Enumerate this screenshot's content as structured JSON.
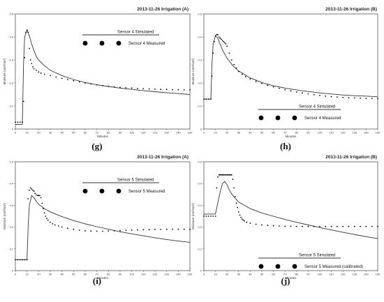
{
  "chart_data": [
    {
      "type": "scatter",
      "title": "2013-11-26 Irrigation (A)",
      "panel_label": "(g)",
      "xlabel": "Minutes",
      "ylabel": "Moisture (cm³/cm³)",
      "xlim": [
        0,
        150
      ],
      "ylim": [
        0,
        0.5
      ],
      "xticks": [
        "0",
        "10",
        "20",
        "30",
        "40",
        "50",
        "60",
        "70",
        "80",
        "90",
        "100",
        "110",
        "120",
        "130",
        "140",
        "150"
      ],
      "yticks": [
        "0",
        "0.1",
        "0.2",
        "0.3",
        "0.4",
        "0.5"
      ],
      "legend_position": "top-right",
      "series": [
        {
          "name": "Sensor 4 Simulated",
          "style": "line",
          "x": [
            0,
            6,
            7,
            8,
            10,
            12,
            14,
            16,
            18,
            20,
            25,
            30,
            40,
            50,
            60,
            70,
            80,
            90,
            100,
            110,
            120,
            130,
            140,
            150
          ],
          "y": [
            0.02,
            0.02,
            0.28,
            0.4,
            0.43,
            0.405,
            0.37,
            0.34,
            0.315,
            0.3,
            0.275,
            0.255,
            0.232,
            0.215,
            0.202,
            0.192,
            0.185,
            0.178,
            0.172,
            0.167,
            0.162,
            0.158,
            0.154,
            0.15
          ]
        },
        {
          "name": "Sensor 4 Measured",
          "style": "markers",
          "x": [
            0,
            2,
            4,
            6,
            7,
            8,
            9,
            10,
            11,
            12,
            13,
            14,
            15,
            16,
            18,
            20,
            22,
            25,
            30,
            35,
            40,
            45,
            50,
            55,
            60,
            65,
            70,
            75,
            80,
            85,
            90,
            95,
            100,
            105,
            110,
            115,
            120,
            125,
            130,
            135,
            140,
            145,
            150
          ],
          "y": [
            0.03,
            0.03,
            0.03,
            0.03,
            0.12,
            0.31,
            0.42,
            0.43,
            0.42,
            0.35,
            0.3,
            0.285,
            0.27,
            0.262,
            0.255,
            0.248,
            0.243,
            0.238,
            0.232,
            0.226,
            0.22,
            0.215,
            0.21,
            0.205,
            0.2,
            0.196,
            0.192,
            0.189,
            0.186,
            0.183,
            0.181,
            0.179,
            0.178,
            0.176,
            0.175,
            0.174,
            0.173,
            0.172,
            0.172,
            0.171,
            0.171,
            0.17,
            0.17
          ]
        }
      ]
    },
    {
      "type": "scatter",
      "title": "2013-11-26 Irrigation (B)",
      "panel_label": "(h)",
      "xlabel": "Minutes",
      "ylabel": "Moisture (cm³/cm³)",
      "xlim": [
        0,
        150
      ],
      "ylim": [
        0,
        0.5
      ],
      "xticks": [
        "0",
        "10",
        "20",
        "30",
        "40",
        "50",
        "60",
        "70",
        "80",
        "90",
        "100",
        "110",
        "120",
        "130",
        "140",
        "150"
      ],
      "yticks": [
        "0",
        "0.1",
        "0.2",
        "0.3",
        "0.4",
        "0.5"
      ],
      "legend_position": "bottom-right",
      "series": [
        {
          "name": "Sensor 4 Simulated",
          "style": "line",
          "x": [
            0,
            6,
            7,
            8,
            10,
            12,
            14,
            16,
            18,
            20,
            25,
            30,
            40,
            50,
            60,
            70,
            80,
            90,
            100,
            110,
            120,
            130,
            140,
            150
          ],
          "y": [
            0.13,
            0.13,
            0.28,
            0.37,
            0.405,
            0.395,
            0.37,
            0.345,
            0.325,
            0.308,
            0.275,
            0.252,
            0.222,
            0.202,
            0.188,
            0.178,
            0.17,
            0.163,
            0.157,
            0.152,
            0.148,
            0.145,
            0.143,
            0.14
          ]
        },
        {
          "name": "Sensor 4 Measured",
          "style": "markers",
          "x": [
            0,
            2,
            4,
            6,
            7,
            8,
            9,
            10,
            11,
            12,
            13,
            14,
            15,
            16,
            17,
            18,
            19,
            20,
            22,
            24,
            26,
            28,
            30,
            33,
            36,
            40,
            45,
            50,
            55,
            60,
            65,
            70,
            75,
            80,
            85,
            90,
            95,
            100,
            105,
            110,
            115,
            120,
            125,
            130,
            135,
            140,
            145,
            150
          ],
          "y": [
            0.13,
            0.13,
            0.13,
            0.13,
            0.23,
            0.33,
            0.38,
            0.405,
            0.41,
            0.41,
            0.4,
            0.395,
            0.39,
            0.385,
            0.38,
            0.375,
            0.37,
            0.36,
            0.33,
            0.3,
            0.28,
            0.265,
            0.25,
            0.238,
            0.228,
            0.218,
            0.207,
            0.198,
            0.19,
            0.183,
            0.177,
            0.171,
            0.166,
            0.161,
            0.157,
            0.153,
            0.149,
            0.146,
            0.143,
            0.141,
            0.139,
            0.137,
            0.136,
            0.135,
            0.134,
            0.133,
            0.133,
            0.132
          ]
        }
      ]
    },
    {
      "type": "scatter",
      "title": "2013-11-26 Irrigation (A)",
      "panel_label": "(i)",
      "xlabel": "Minutes",
      "ylabel": "Moisture (cm³/cm³)",
      "xlim": [
        0,
        150
      ],
      "ylim": [
        0,
        0.5
      ],
      "xticks": [
        "0",
        "10",
        "20",
        "30",
        "40",
        "50",
        "60",
        "70",
        "80",
        "90",
        "100",
        "110",
        "120",
        "130",
        "140",
        "150"
      ],
      "yticks": [
        "0",
        "0.1",
        "0.2",
        "0.3",
        "0.4",
        "0.5"
      ],
      "legend_position": "top-right",
      "series": [
        {
          "name": "Sensor 5 Simulated",
          "style": "line",
          "x": [
            0,
            10,
            11,
            12,
            14,
            16,
            18,
            20,
            25,
            30,
            40,
            50,
            60,
            70,
            80,
            90,
            100,
            110,
            120,
            130,
            140,
            150
          ],
          "y": [
            0.05,
            0.05,
            0.2,
            0.3,
            0.345,
            0.335,
            0.318,
            0.305,
            0.285,
            0.27,
            0.248,
            0.23,
            0.215,
            0.202,
            0.19,
            0.179,
            0.169,
            0.16,
            0.151,
            0.143,
            0.136,
            0.13
          ]
        },
        {
          "name": "Sensor 5 Measured",
          "style": "markers",
          "x": [
            0,
            2,
            4,
            6,
            8,
            10,
            11,
            12,
            13,
            14,
            15,
            16,
            17,
            18,
            19,
            20,
            21,
            22,
            23,
            24,
            25,
            26,
            27,
            28,
            30,
            32,
            34,
            37,
            40,
            45,
            50,
            55,
            60,
            65,
            70,
            75,
            80,
            85,
            90,
            95,
            100,
            105,
            110,
            115,
            120,
            125,
            130,
            135,
            140,
            145,
            150
          ],
          "y": [
            0.05,
            0.05,
            0.05,
            0.05,
            0.05,
            0.05,
            0.33,
            0.37,
            0.38,
            0.375,
            0.37,
            0.365,
            0.355,
            0.348,
            0.345,
            0.345,
            0.345,
            0.335,
            0.31,
            0.285,
            0.265,
            0.25,
            0.24,
            0.232,
            0.222,
            0.215,
            0.21,
            0.205,
            0.2,
            0.195,
            0.19,
            0.186,
            0.183,
            0.182,
            0.181,
            0.181,
            0.182,
            0.183,
            0.184,
            0.185,
            0.186,
            0.187,
            0.188,
            0.188,
            0.189,
            0.189,
            0.19,
            0.19,
            0.19,
            0.19,
            0.19
          ]
        }
      ]
    },
    {
      "type": "scatter",
      "title": "2013-11-26 Irrigation (B)",
      "panel_label": "(j)",
      "xlabel": "Minutes",
      "ylabel": "Moisture (cm³/cm³)",
      "xlim": [
        0,
        150
      ],
      "ylim": [
        0,
        0.5
      ],
      "xticks": [
        "0",
        "10",
        "20",
        "30",
        "40",
        "50",
        "60",
        "70",
        "80",
        "90",
        "100",
        "110",
        "120",
        "130",
        "140",
        "150"
      ],
      "yticks": [
        "0",
        "0.1",
        "0.2",
        "0.3",
        "0.4",
        "0.5"
      ],
      "legend_position": "bottom-right",
      "series": [
        {
          "name": "Sensor 5 Simulated",
          "style": "line",
          "x": [
            0,
            10,
            12,
            14,
            16,
            18,
            20,
            22,
            25,
            30,
            40,
            50,
            60,
            70,
            80,
            90,
            100,
            110,
            120,
            130,
            140,
            150
          ],
          "y": [
            0.26,
            0.26,
            0.31,
            0.36,
            0.4,
            0.41,
            0.395,
            0.37,
            0.345,
            0.315,
            0.285,
            0.265,
            0.25,
            0.235,
            0.222,
            0.21,
            0.198,
            0.187,
            0.176,
            0.166,
            0.156,
            0.147
          ]
        },
        {
          "name": "Sensor 5 Measured (calibrated)",
          "style": "markers",
          "x": [
            0,
            2,
            4,
            6,
            8,
            10,
            11,
            12,
            13,
            14,
            15,
            16,
            17,
            18,
            19,
            20,
            21,
            22,
            23,
            24,
            25,
            26,
            27,
            28,
            29,
            30,
            31,
            32,
            33,
            34,
            35,
            37,
            40,
            45,
            50,
            55,
            60,
            65,
            70,
            75,
            80,
            85,
            90,
            95,
            100,
            105,
            110,
            115,
            120,
            125,
            130,
            135,
            140,
            145,
            150
          ],
          "y": [
            0.25,
            0.25,
            0.25,
            0.25,
            0.25,
            0.25,
            0.38,
            0.43,
            0.44,
            0.44,
            0.44,
            0.44,
            0.44,
            0.44,
            0.44,
            0.44,
            0.44,
            0.44,
            0.44,
            0.44,
            0.42,
            0.38,
            0.34,
            0.31,
            0.29,
            0.27,
            0.255,
            0.245,
            0.237,
            0.232,
            0.228,
            0.222,
            0.218,
            0.213,
            0.21,
            0.208,
            0.206,
            0.205,
            0.204,
            0.204,
            0.203,
            0.203,
            0.203,
            0.203,
            0.203,
            0.203,
            0.203,
            0.203,
            0.203,
            0.203,
            0.203,
            0.203,
            0.203,
            0.203,
            0.203
          ]
        }
      ]
    }
  ]
}
